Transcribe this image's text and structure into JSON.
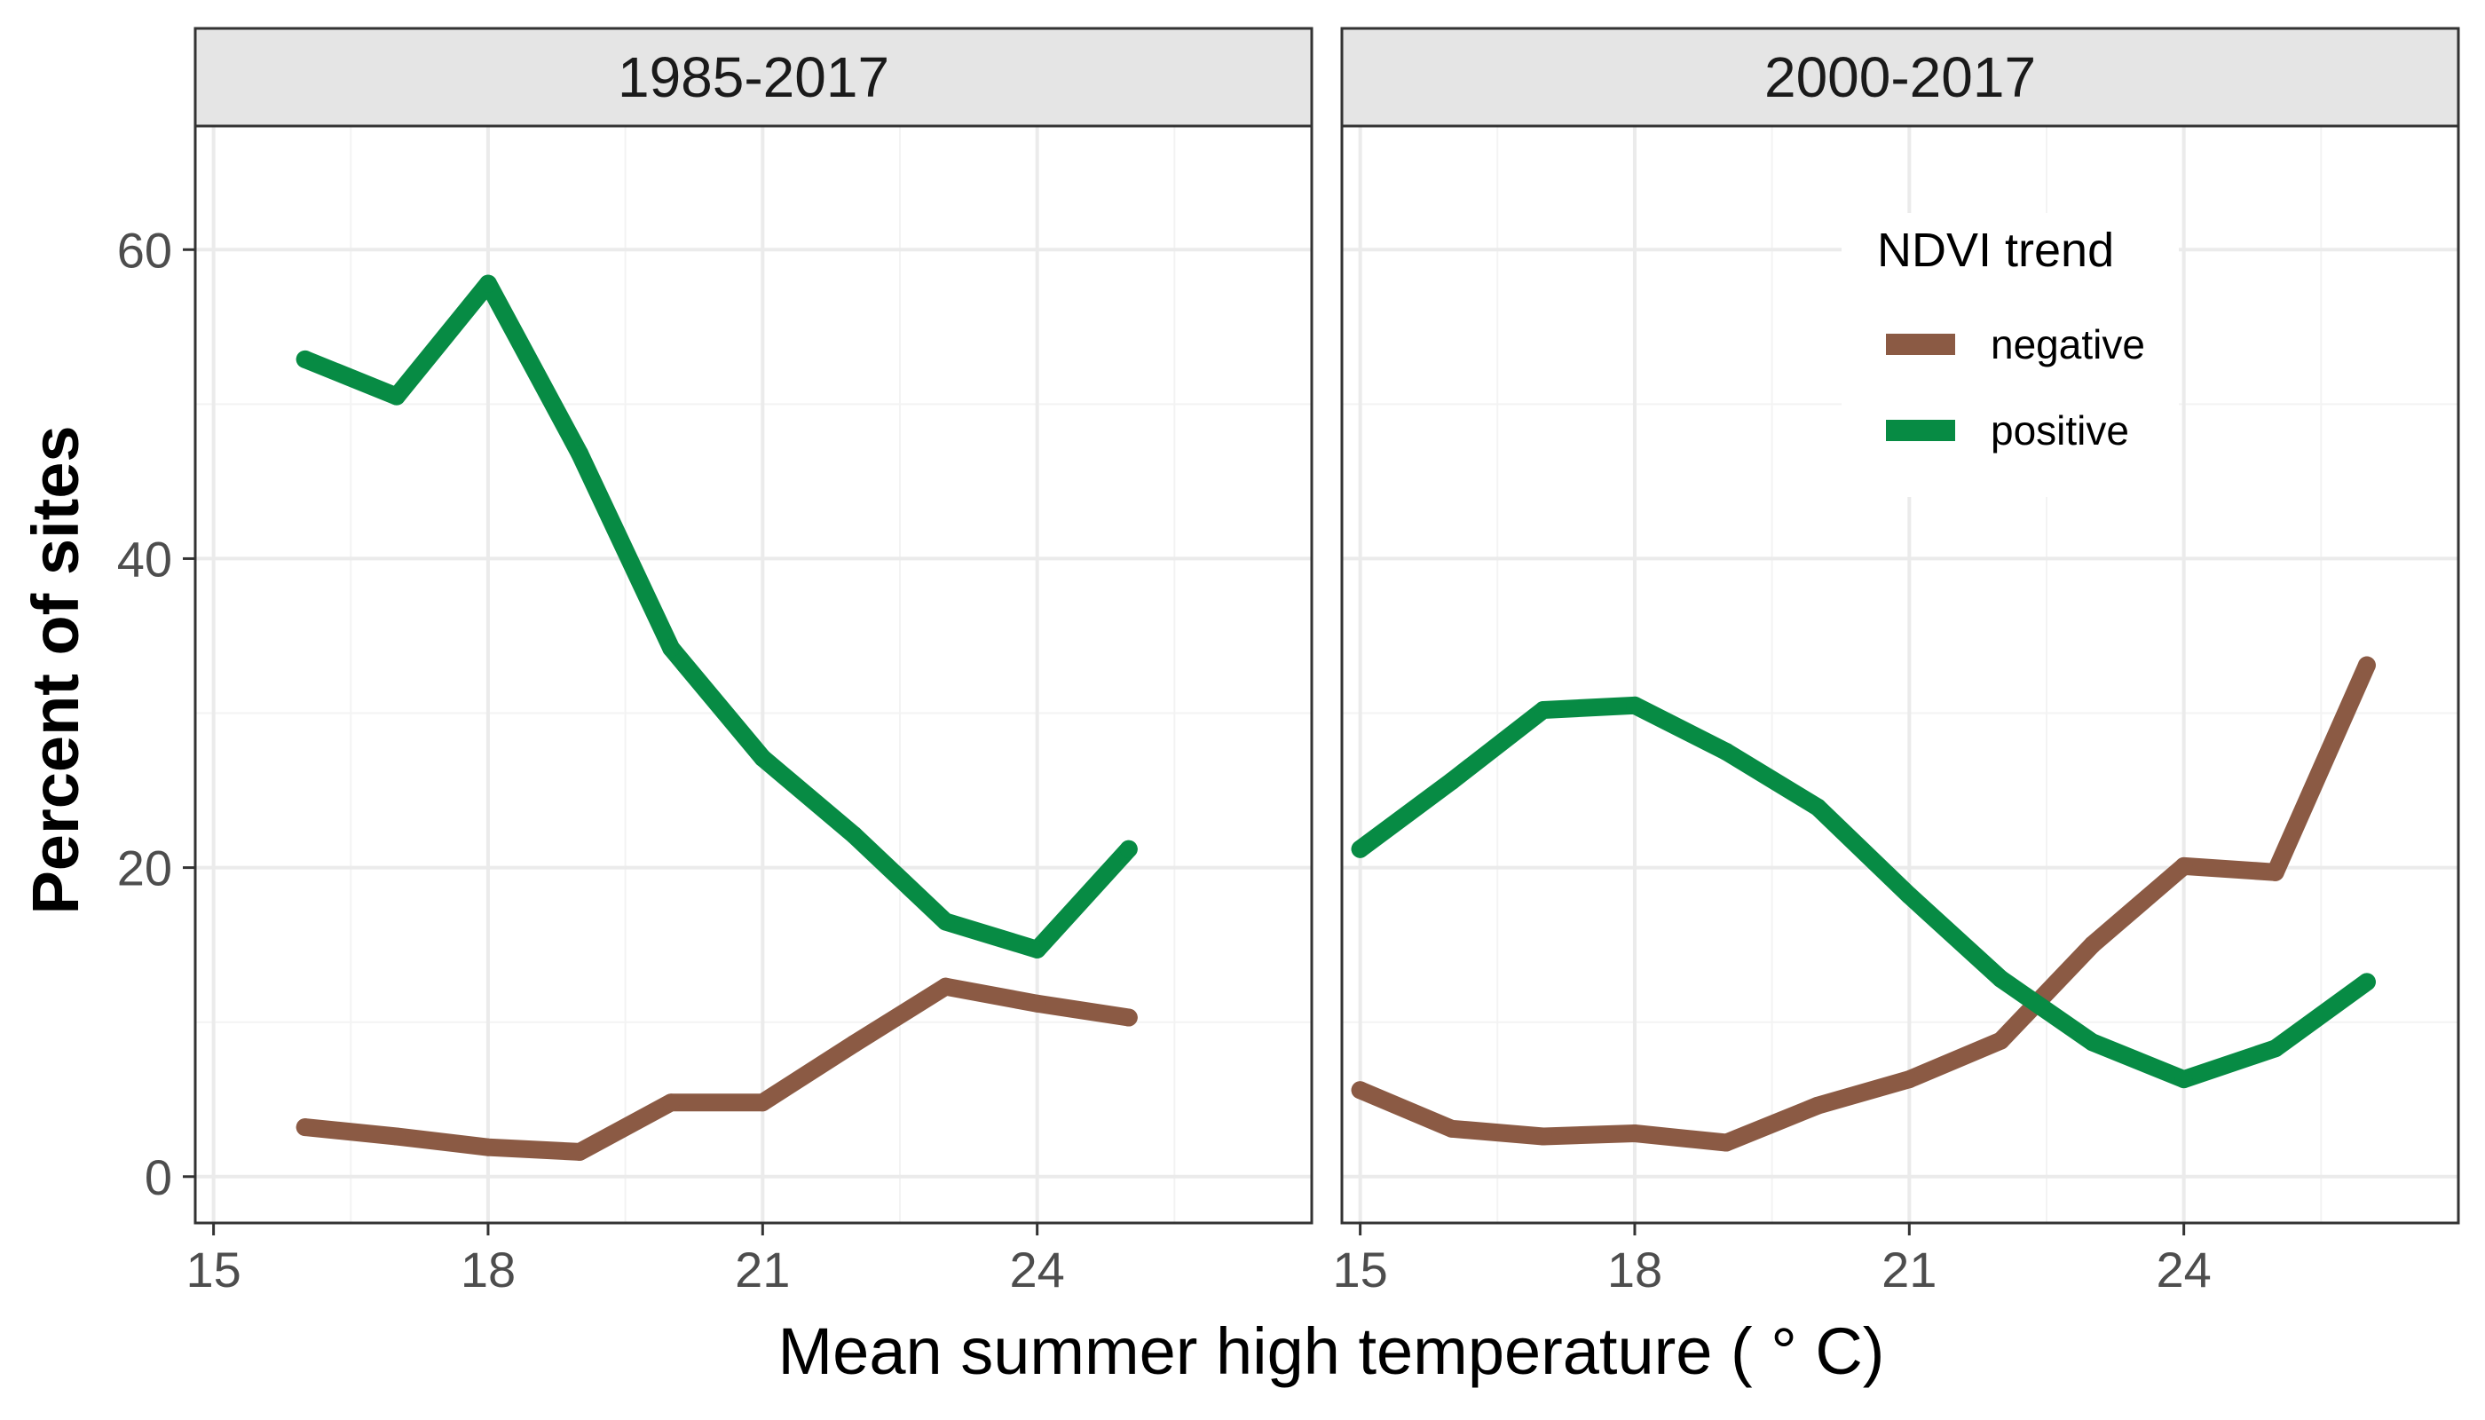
{
  "chart_data": {
    "type": "line",
    "xlabel": "Mean summer high temperature ( ° C)",
    "ylabel": "Percent of sites",
    "xlim": [
      14.8,
      27
    ],
    "ylim": [
      -3,
      68
    ],
    "x_ticks": [
      15,
      18,
      21,
      24
    ],
    "y_ticks": [
      0,
      20,
      40,
      60
    ],
    "grid": true,
    "legend": {
      "title": "NDVI trend",
      "position": "top-right of second panel",
      "entries": [
        "negative",
        "positive"
      ]
    },
    "colors": {
      "negative": "#8b5a44",
      "positive": "#078b44"
    },
    "panels": [
      {
        "title": "1985-2017",
        "series": [
          {
            "name": "negative",
            "x": [
              16,
              17,
              18,
              19,
              20,
              21,
              22,
              23,
              24,
              25
            ],
            "y": [
              3.2,
              2.6,
              1.9,
              1.6,
              4.8,
              4.8,
              8.6,
              12.3,
              11.2,
              10.3
            ]
          },
          {
            "name": "positive",
            "x": [
              16,
              17,
              18,
              19,
              20,
              21,
              22,
              23,
              24,
              25
            ],
            "y": [
              52.9,
              50.5,
              57.8,
              46.8,
              34.2,
              27.1,
              22.1,
              16.5,
              14.7,
              21.2
            ]
          }
        ]
      },
      {
        "title": "2000-2017",
        "series": [
          {
            "name": "negative",
            "x": [
              15,
              16,
              17,
              18,
              19,
              20,
              21,
              22,
              23,
              24,
              25,
              26
            ],
            "y": [
              5.6,
              3.1,
              2.6,
              2.8,
              2.2,
              4.6,
              6.3,
              8.8,
              15.0,
              20.1,
              19.7,
              33.1
            ]
          },
          {
            "name": "positive",
            "x": [
              15,
              16,
              17,
              18,
              19,
              20,
              21,
              22,
              23,
              24,
              25,
              26
            ],
            "y": [
              21.2,
              25.6,
              30.2,
              30.5,
              27.5,
              23.9,
              18.2,
              12.8,
              8.7,
              6.3,
              8.3,
              12.6
            ]
          }
        ]
      }
    ]
  }
}
